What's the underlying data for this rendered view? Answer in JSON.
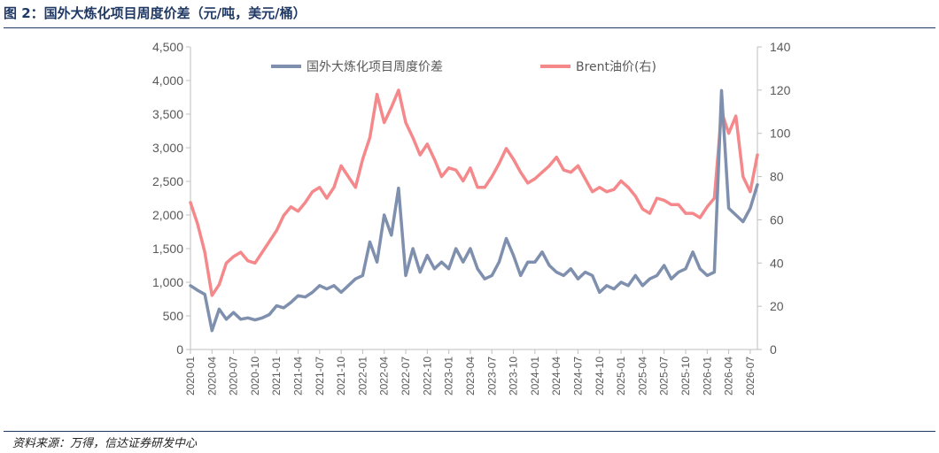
{
  "figure": {
    "title": "图 2：国外大炼化项目周度价差（元/吨，美元/桶）",
    "source": "资料来源：万得，信达证券研发中心"
  },
  "colors": {
    "spread": "#7f8fae",
    "brent": "#f4888a",
    "axis": "#bfbfbf",
    "text": "#595959",
    "accent": "#1f3864"
  },
  "chart_data": {
    "type": "line",
    "legend_position": "top",
    "grid": false,
    "x_tick_labels": [
      "2020-01",
      "2020-04",
      "2020-07",
      "2020-10",
      "2021-01",
      "2021-04",
      "2021-07",
      "2021-10",
      "2022-01",
      "2022-04",
      "2022-07",
      "2022-10",
      "2023-01",
      "2023-04",
      "2023-07",
      "2023-10",
      "2024-01",
      "2024-04",
      "2024-07",
      "2024-10",
      "2025-01",
      "2025-04",
      "2025-07",
      "2025-10",
      "2026-01",
      "2026-04",
      "2026-07"
    ],
    "y_left": {
      "min": 0,
      "max": 4500,
      "step": 500,
      "tick_labels": [
        "0",
        "500",
        "1,000",
        "1,500",
        "2,000",
        "2,500",
        "3,000",
        "3,500",
        "4,000",
        "4,500"
      ]
    },
    "y_right": {
      "min": 0,
      "max": 140,
      "step": 20,
      "tick_labels": [
        "0",
        "20",
        "40",
        "60",
        "80",
        "100",
        "120",
        "140"
      ]
    },
    "series": [
      {
        "name": "国外大炼化项目周度价差",
        "axis": "left",
        "points": [
          [
            "2020-01",
            950
          ],
          [
            "2020-02",
            880
          ],
          [
            "2020-03",
            820
          ],
          [
            "2020-04",
            280
          ],
          [
            "2020-05",
            600
          ],
          [
            "2020-06",
            450
          ],
          [
            "2020-07",
            550
          ],
          [
            "2020-08",
            450
          ],
          [
            "2020-09",
            470
          ],
          [
            "2020-10",
            440
          ],
          [
            "2020-11",
            470
          ],
          [
            "2020-12",
            520
          ],
          [
            "2021-01",
            650
          ],
          [
            "2021-02",
            620
          ],
          [
            "2021-03",
            700
          ],
          [
            "2021-04",
            800
          ],
          [
            "2021-05",
            780
          ],
          [
            "2021-06",
            850
          ],
          [
            "2021-07",
            950
          ],
          [
            "2021-08",
            900
          ],
          [
            "2021-09",
            950
          ],
          [
            "2021-10",
            850
          ],
          [
            "2021-11",
            950
          ],
          [
            "2021-12",
            1050
          ],
          [
            "2022-01",
            1100
          ],
          [
            "2022-02",
            1600
          ],
          [
            "2022-03",
            1300
          ],
          [
            "2022-04",
            2000
          ],
          [
            "2022-05",
            1700
          ],
          [
            "2022-06",
            2400
          ],
          [
            "2022-07",
            1100
          ],
          [
            "2022-08",
            1500
          ],
          [
            "2022-09",
            1150
          ],
          [
            "2022-10",
            1400
          ],
          [
            "2022-11",
            1200
          ],
          [
            "2022-12",
            1300
          ],
          [
            "2023-01",
            1200
          ],
          [
            "2023-02",
            1500
          ],
          [
            "2023-03",
            1300
          ],
          [
            "2023-04",
            1500
          ],
          [
            "2023-05",
            1200
          ],
          [
            "2023-06",
            1050
          ],
          [
            "2023-07",
            1100
          ],
          [
            "2023-08",
            1300
          ],
          [
            "2023-09",
            1650
          ],
          [
            "2023-10",
            1400
          ],
          [
            "2023-11",
            1100
          ],
          [
            "2023-12",
            1300
          ],
          [
            "2024-01",
            1300
          ],
          [
            "2024-02",
            1450
          ],
          [
            "2024-03",
            1250
          ],
          [
            "2024-04",
            1150
          ],
          [
            "2024-05",
            1100
          ],
          [
            "2024-06",
            1200
          ],
          [
            "2024-07",
            1050
          ],
          [
            "2024-08",
            1150
          ],
          [
            "2024-09",
            1100
          ],
          [
            "2024-10",
            850
          ],
          [
            "2024-11",
            950
          ],
          [
            "2024-12",
            900
          ],
          [
            "2025-01",
            1000
          ],
          [
            "2025-02",
            950
          ],
          [
            "2025-03",
            1100
          ],
          [
            "2025-04",
            950
          ],
          [
            "2025-05",
            1050
          ],
          [
            "2025-06",
            1100
          ],
          [
            "2025-07",
            1250
          ],
          [
            "2025-08",
            1050
          ],
          [
            "2025-09",
            1150
          ],
          [
            "2025-10",
            1200
          ],
          [
            "2025-11",
            1450
          ],
          [
            "2025-12",
            1200
          ],
          [
            "2026-01",
            1100
          ],
          [
            "2026-02",
            1150
          ],
          [
            "2026-03",
            3850
          ],
          [
            "2026-04",
            2100
          ],
          [
            "2026-05",
            2000
          ],
          [
            "2026-06",
            1900
          ],
          [
            "2026-07",
            2100
          ],
          [
            "2026-08",
            2450
          ]
        ]
      },
      {
        "name": "Brent油价(右)",
        "axis": "right",
        "points": [
          [
            "2020-01",
            68
          ],
          [
            "2020-02",
            58
          ],
          [
            "2020-03",
            45
          ],
          [
            "2020-04",
            25
          ],
          [
            "2020-05",
            30
          ],
          [
            "2020-06",
            40
          ],
          [
            "2020-07",
            43
          ],
          [
            "2020-08",
            45
          ],
          [
            "2020-09",
            41
          ],
          [
            "2020-10",
            40
          ],
          [
            "2020-11",
            45
          ],
          [
            "2020-12",
            50
          ],
          [
            "2021-01",
            55
          ],
          [
            "2021-02",
            62
          ],
          [
            "2021-03",
            66
          ],
          [
            "2021-04",
            64
          ],
          [
            "2021-05",
            68
          ],
          [
            "2021-06",
            73
          ],
          [
            "2021-07",
            75
          ],
          [
            "2021-08",
            70
          ],
          [
            "2021-09",
            75
          ],
          [
            "2021-10",
            85
          ],
          [
            "2021-11",
            80
          ],
          [
            "2021-12",
            75
          ],
          [
            "2022-01",
            88
          ],
          [
            "2022-02",
            98
          ],
          [
            "2022-03",
            118
          ],
          [
            "2022-04",
            105
          ],
          [
            "2022-05",
            112
          ],
          [
            "2022-06",
            120
          ],
          [
            "2022-07",
            105
          ],
          [
            "2022-08",
            98
          ],
          [
            "2022-09",
            90
          ],
          [
            "2022-10",
            95
          ],
          [
            "2022-11",
            88
          ],
          [
            "2022-12",
            80
          ],
          [
            "2023-01",
            84
          ],
          [
            "2023-02",
            83
          ],
          [
            "2023-03",
            78
          ],
          [
            "2023-04",
            84
          ],
          [
            "2023-05",
            75
          ],
          [
            "2023-06",
            75
          ],
          [
            "2023-07",
            80
          ],
          [
            "2023-08",
            86
          ],
          [
            "2023-09",
            93
          ],
          [
            "2023-10",
            88
          ],
          [
            "2023-11",
            82
          ],
          [
            "2023-12",
            77
          ],
          [
            "2024-01",
            79
          ],
          [
            "2024-02",
            82
          ],
          [
            "2024-03",
            85
          ],
          [
            "2024-04",
            89
          ],
          [
            "2024-05",
            83
          ],
          [
            "2024-06",
            82
          ],
          [
            "2024-07",
            85
          ],
          [
            "2024-08",
            79
          ],
          [
            "2024-09",
            73
          ],
          [
            "2024-10",
            75
          ],
          [
            "2024-11",
            73
          ],
          [
            "2024-12",
            74
          ],
          [
            "2025-01",
            78
          ],
          [
            "2025-02",
            75
          ],
          [
            "2025-03",
            71
          ],
          [
            "2025-04",
            65
          ],
          [
            "2025-05",
            63
          ],
          [
            "2025-06",
            70
          ],
          [
            "2025-07",
            69
          ],
          [
            "2025-08",
            67
          ],
          [
            "2025-09",
            67
          ],
          [
            "2025-10",
            63
          ],
          [
            "2025-11",
            63
          ],
          [
            "2025-12",
            61
          ],
          [
            "2026-01",
            66
          ],
          [
            "2026-02",
            70
          ],
          [
            "2026-03",
            110
          ],
          [
            "2026-04",
            100
          ],
          [
            "2026-05",
            108
          ],
          [
            "2026-06",
            80
          ],
          [
            "2026-07",
            73
          ],
          [
            "2026-08",
            90
          ]
        ]
      }
    ]
  }
}
